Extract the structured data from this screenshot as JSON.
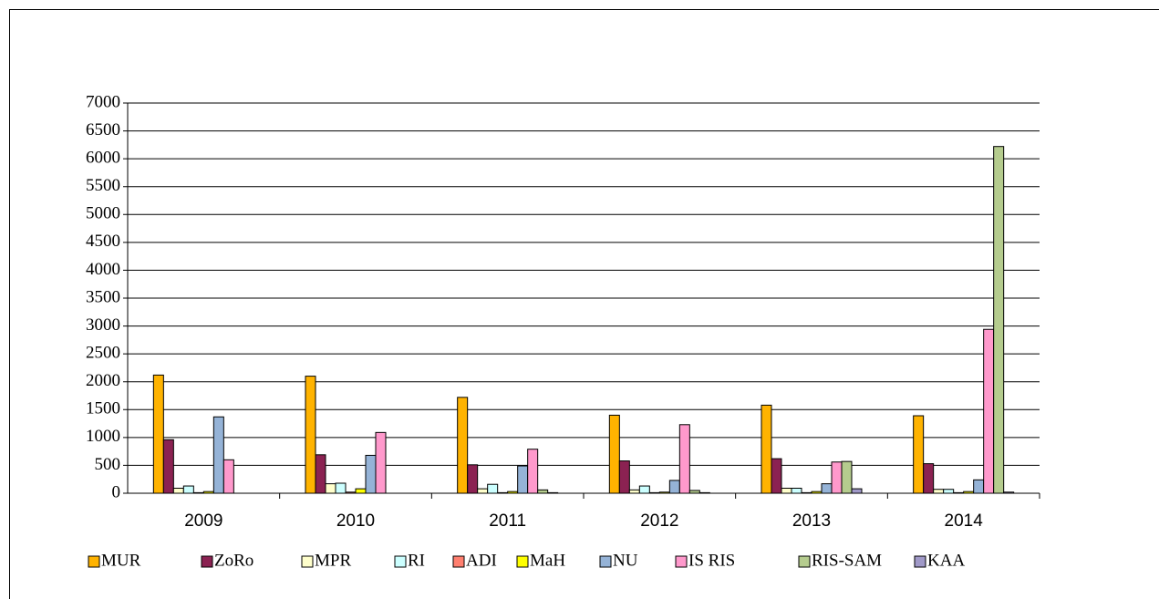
{
  "chart_data": {
    "type": "bar",
    "categories": [
      "2009",
      "2010",
      "2011",
      "2012",
      "2013",
      "2014"
    ],
    "series": [
      {
        "name": "MUR",
        "color": "#ffb300",
        "values": [
          2120,
          2100,
          1720,
          1400,
          1580,
          1390
        ]
      },
      {
        "name": "ZoRo",
        "color": "#8b2252",
        "values": [
          960,
          690,
          510,
          580,
          620,
          530
        ]
      },
      {
        "name": "MPR",
        "color": "#ffffcc",
        "values": [
          90,
          170,
          80,
          60,
          90,
          70
        ]
      },
      {
        "name": "RI",
        "color": "#ccffff",
        "values": [
          130,
          180,
          160,
          130,
          90,
          70
        ]
      },
      {
        "name": "ADI",
        "color": "#ff7f6f",
        "values": [
          10,
          20,
          10,
          10,
          10,
          10
        ]
      },
      {
        "name": "MaH",
        "color": "#ffff00",
        "values": [
          30,
          80,
          30,
          20,
          30,
          30
        ]
      },
      {
        "name": "NU",
        "color": "#95b3d7",
        "values": [
          1370,
          680,
          490,
          230,
          170,
          240
        ]
      },
      {
        "name": "IS RIS",
        "color": "#ff99cc",
        "values": [
          600,
          1090,
          790,
          1230,
          560,
          2940
        ]
      },
      {
        "name": "RIS-SAM",
        "color": "#b5cc8e",
        "values": [
          0,
          0,
          60,
          50,
          570,
          6220
        ]
      },
      {
        "name": "KAA",
        "color": "#a099c8",
        "values": [
          0,
          0,
          10,
          10,
          80,
          20
        ]
      }
    ],
    "ylim": [
      0,
      7000
    ],
    "yticks": [
      0,
      500,
      1000,
      1500,
      2000,
      2500,
      3000,
      3500,
      4000,
      4500,
      5000,
      5500,
      6000,
      6500,
      7000
    ],
    "grid": true,
    "legend": "bottom"
  }
}
